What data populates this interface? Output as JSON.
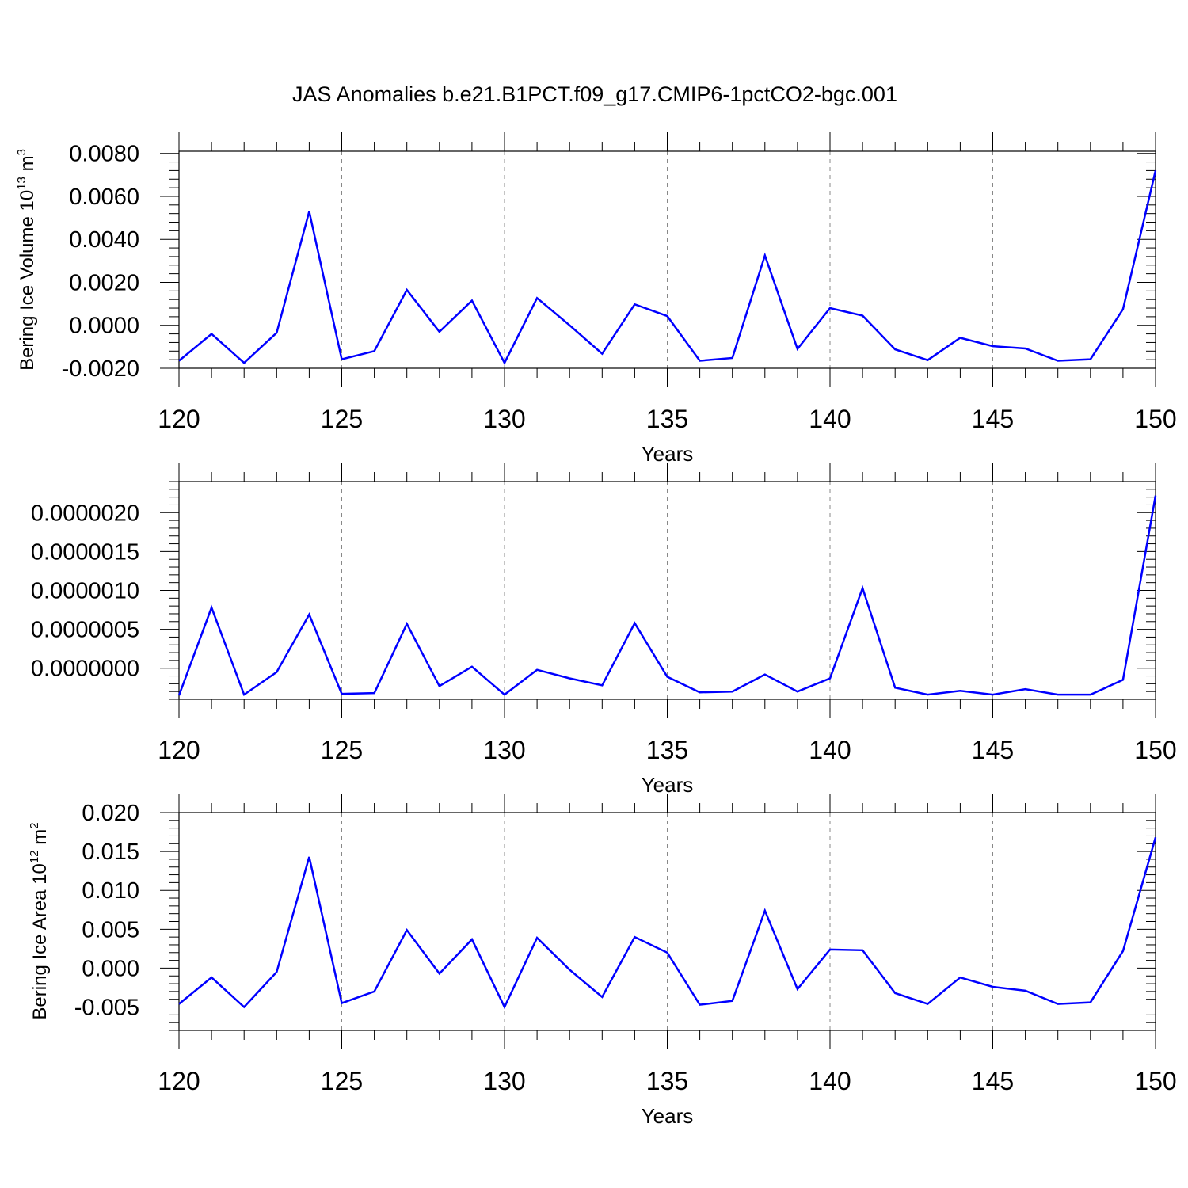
{
  "title": "JAS Anomalies b.e21.B1PCT.f09_g17.CMIP6-1pctCO2-bgc.001",
  "colors": {
    "line": "#0000ff",
    "grid": "#888888",
    "axis": "#000000"
  },
  "chart_data": [
    {
      "type": "line",
      "ylabel": "Bering Ice Volume 10",
      "ylabel_exp": "13",
      "ylabel_unit": " m",
      "ylabel_unit_exp": "3",
      "xlabel": "Years",
      "xlim": [
        120,
        150
      ],
      "ylim": [
        -0.002,
        0.0081
      ],
      "xticks": [
        "120",
        "125",
        "130",
        "135",
        "140",
        "145",
        "150"
      ],
      "yticks": [
        -0.002,
        0.0,
        0.002,
        0.004,
        0.006,
        0.008
      ],
      "ytick_labels": [
        "-0.0020",
        "0.0000",
        "0.0020",
        "0.0040",
        "0.0060",
        "0.0080"
      ],
      "grid": "x dashed",
      "x": [
        120,
        121,
        122,
        123,
        124,
        125,
        126,
        127,
        128,
        129,
        130,
        131,
        132,
        133,
        134,
        135,
        136,
        137,
        138,
        139,
        140,
        141,
        142,
        143,
        144,
        145,
        146,
        147,
        148,
        149,
        150
      ],
      "series": [
        {
          "values": [
            -0.00165,
            -0.0004,
            -0.00175,
            -0.00035,
            0.0053,
            -0.00158,
            -0.0012,
            0.00165,
            -0.0003,
            0.00115,
            -0.00175,
            0.00127,
            0.0,
            -0.00132,
            0.00098,
            0.00043,
            -0.00165,
            -0.00152,
            0.00325,
            -0.0011,
            0.0008,
            0.00045,
            -0.00112,
            -0.00162,
            -0.00058,
            -0.00097,
            -0.00108,
            -0.00165,
            -0.00158,
            0.00075,
            0.0072
          ]
        }
      ]
    },
    {
      "type": "line",
      "ylabel": "",
      "xlabel": "Years",
      "xlim": [
        120,
        150
      ],
      "ylim": [
        -4e-07,
        2.4e-06
      ],
      "xticks": [
        "120",
        "125",
        "130",
        "135",
        "140",
        "145",
        "150"
      ],
      "yticks": [
        0.0,
        5e-07,
        1e-06,
        1.5e-06,
        2e-06
      ],
      "ytick_labels": [
        "0.0000000",
        "0.0000005",
        "0.0000010",
        "0.0000015",
        "0.0000020"
      ],
      "grid": "x dashed",
      "x": [
        120,
        121,
        122,
        123,
        124,
        125,
        126,
        127,
        128,
        129,
        130,
        131,
        132,
        133,
        134,
        135,
        136,
        137,
        138,
        139,
        140,
        141,
        142,
        143,
        144,
        145,
        146,
        147,
        148,
        149,
        150
      ],
      "series": [
        {
          "values": [
            -3.5e-07,
            7.8e-07,
            -3.4e-07,
            -5e-08,
            6.9e-07,
            -3.3e-07,
            -3.2e-07,
            5.7e-07,
            -2.3e-07,
            2e-08,
            -3.4e-07,
            -2e-08,
            -1.3e-07,
            -2.2e-07,
            5.8e-07,
            -1.1e-07,
            -3.1e-07,
            -3e-07,
            -8e-08,
            -3e-07,
            -1.3e-07,
            1.03e-06,
            -2.5e-07,
            -3.4e-07,
            -2.9e-07,
            -3.4e-07,
            -2.7e-07,
            -3.4e-07,
            -3.4e-07,
            -1.5e-07,
            2.22e-06
          ]
        }
      ]
    },
    {
      "type": "line",
      "ylabel": "Bering Ice Area 10",
      "ylabel_exp": "12",
      "ylabel_unit": " m",
      "ylabel_unit_exp": "2",
      "xlabel": "Years",
      "xlim": [
        120,
        150
      ],
      "ylim": [
        -0.008,
        0.02
      ],
      "xticks": [
        "120",
        "125",
        "130",
        "135",
        "140",
        "145",
        "150"
      ],
      "yticks": [
        -0.005,
        0.0,
        0.005,
        0.01,
        0.015,
        0.02
      ],
      "ytick_labels": [
        "-0.005",
        "0.000",
        "0.005",
        "0.010",
        "0.015",
        "0.020"
      ],
      "grid": "x dashed",
      "x": [
        120,
        121,
        122,
        123,
        124,
        125,
        126,
        127,
        128,
        129,
        130,
        131,
        132,
        133,
        134,
        135,
        136,
        137,
        138,
        139,
        140,
        141,
        142,
        143,
        144,
        145,
        146,
        147,
        148,
        149,
        150
      ],
      "series": [
        {
          "values": [
            -0.0046,
            -0.0012,
            -0.005,
            -0.0005,
            0.0143,
            -0.0045,
            -0.003,
            0.0049,
            -0.0007,
            0.0037,
            -0.005,
            0.0039,
            -0.0002,
            -0.0037,
            0.004,
            0.002,
            -0.0047,
            -0.0042,
            0.0074,
            -0.0027,
            0.0024,
            0.0023,
            -0.0032,
            -0.0046,
            -0.0012,
            -0.0024,
            -0.0029,
            -0.0046,
            -0.0044,
            0.0022,
            0.0168
          ]
        }
      ]
    }
  ]
}
